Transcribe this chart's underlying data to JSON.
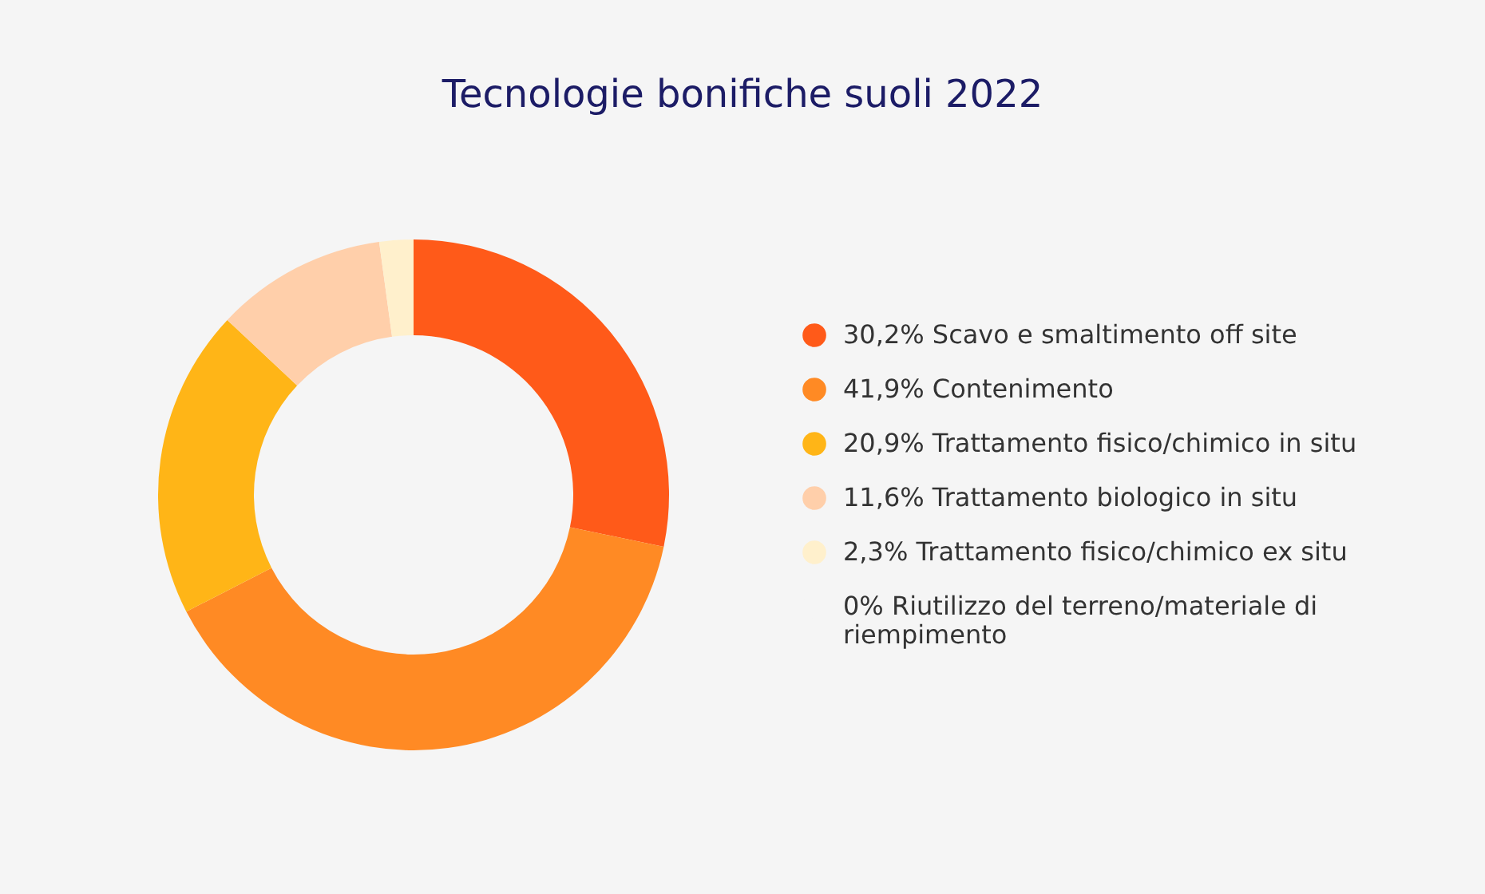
{
  "chart_data": {
    "type": "donut",
    "title": "Tecnologie bonifiche suoli 2022",
    "categories": [
      "Scavo e smaltimento off site",
      "Contenimento",
      "Trattamento fisico/chimico in situ",
      "Trattamento biologico in situ",
      "Trattamento fisico/chimico ex situ",
      "Riutilizzo del terreno/materiale di riempimento"
    ],
    "values": [
      30.2,
      41.9,
      20.9,
      11.6,
      2.3,
      0
    ],
    "value_labels": [
      "30,2%",
      "41,9%",
      "20,9%",
      "11,6%",
      "2,3%",
      "0%"
    ],
    "colors": [
      "#ff5a19",
      "#ff8a24",
      "#ffb517",
      "#ffcfaa",
      "#fff0cc",
      null
    ],
    "legend": "right"
  }
}
